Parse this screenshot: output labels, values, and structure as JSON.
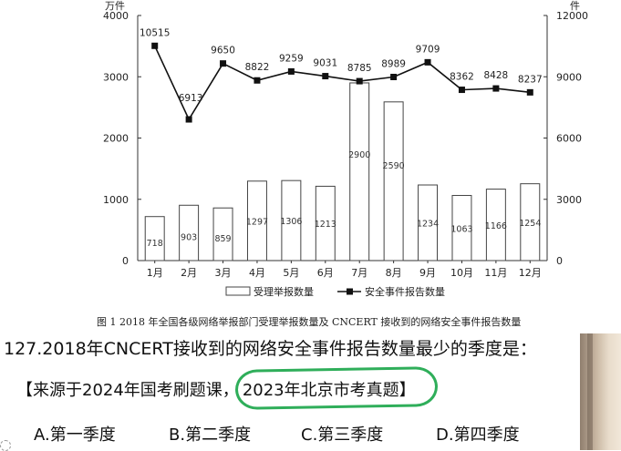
{
  "chart_data": {
    "type": "bar+line",
    "categories": [
      "1月",
      "2月",
      "3月",
      "4月",
      "5月",
      "6月",
      "7月",
      "8月",
      "9月",
      "10月",
      "11月",
      "12月"
    ],
    "series": [
      {
        "name": "受理举报数量",
        "type": "bar",
        "axis": "left",
        "values": [
          718,
          903,
          859,
          1297,
          1306,
          1213,
          2900,
          2590,
          1234,
          1063,
          1166,
          1254
        ]
      },
      {
        "name": "安全事件报告数量",
        "type": "line",
        "axis": "right",
        "values": [
          10515,
          6913,
          9650,
          8822,
          9259,
          9031,
          8785,
          8989,
          9709,
          8362,
          8428,
          8237
        ]
      }
    ],
    "left_axis": {
      "unit": "万件",
      "ylim": [
        0,
        4000
      ],
      "ticks": [
        "0",
        "1000",
        "2000",
        "3000",
        "4000"
      ]
    },
    "right_axis": {
      "unit": "件",
      "ylim": [
        0,
        12000
      ],
      "ticks": [
        "0",
        "3000",
        "6000",
        "9000",
        "12000"
      ]
    },
    "legend_position": "bottom",
    "grid": false
  },
  "caption": "图 1   2018 年全国各级网络举报部门受理举报数量及 CNCERT 接收到的网络安全事件报告数量",
  "question": {
    "text": "127.2018年CNCERT接收到的网络安全事件报告数量最少的季度是：",
    "source_prefix": "【来源于2024年国考刷题课，",
    "source_highlight": "2023年北京市考真题】",
    "options": [
      "A.第一季度",
      "B.第二季度",
      "C.第三季度",
      "D.第四季度"
    ]
  },
  "colors": {
    "highlight_circle": "#2fae5a"
  }
}
